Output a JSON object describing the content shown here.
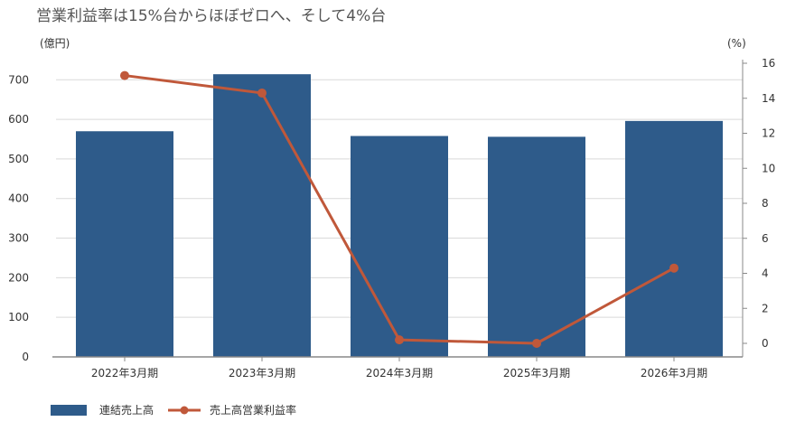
{
  "chart_data": {
    "type": "bar+line",
    "title": "営業利益率は15%台からほぼゼロへ、そして4%台",
    "categories": [
      "2022年3月期",
      "2023年3月期",
      "2024年3月期",
      "2025年3月期",
      "2026年3月期"
    ],
    "series": [
      {
        "name": "連結売上高",
        "type": "bar",
        "axis": "left",
        "values": [
          570,
          714,
          558,
          556,
          596
        ]
      },
      {
        "name": "売上高営業利益率",
        "type": "line",
        "axis": "right",
        "values": [
          15.3,
          14.3,
          0.2,
          0.0,
          4.3
        ]
      }
    ],
    "left_axis": {
      "unit": "(億円)",
      "ylim": [
        0,
        700
      ],
      "ticks": [
        0,
        100,
        200,
        300,
        400,
        500,
        600,
        700
      ]
    },
    "right_axis": {
      "unit": "(%)",
      "ylim": [
        0,
        16
      ],
      "ticks": [
        0,
        2,
        4,
        6,
        8,
        10,
        12,
        14,
        16
      ]
    },
    "grid": true,
    "legend_position": "bottom-left",
    "colors": {
      "bar": "#2e5b8a",
      "line": "#c0583a",
      "grid": "#d9d9d9",
      "axis": "#888888",
      "title": "#555555"
    }
  }
}
